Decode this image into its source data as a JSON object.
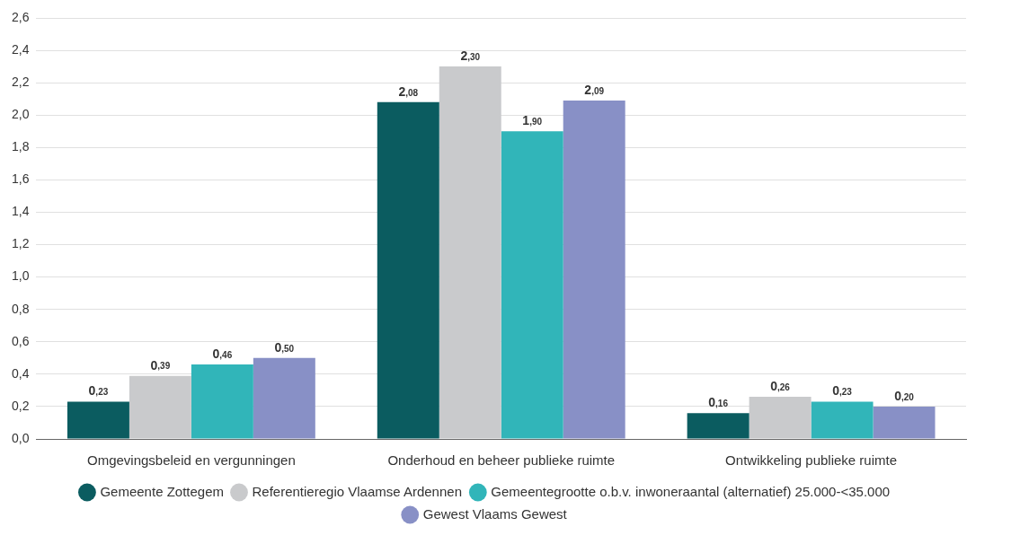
{
  "chart_data": {
    "type": "bar",
    "categories": [
      "Omgevingsbeleid en vergunningen",
      "Onderhoud en beheer publieke ruimte",
      "Ontwikkeling publieke ruimte"
    ],
    "series": [
      {
        "name": "Gemeente Zottegem",
        "color": "#0b5c60",
        "values": [
          0.23,
          2.08,
          0.16
        ],
        "value_labels": [
          "0,23",
          "2,08",
          "0,16"
        ]
      },
      {
        "name": "Referentieregio Vlaamse Ardennen",
        "color": "#c9cacc",
        "values": [
          0.39,
          2.3,
          0.26
        ],
        "value_labels": [
          "0,39",
          "2,30",
          "0,26"
        ]
      },
      {
        "name": "Gemeentegrootte o.b.v. inwoneraantal (alternatief) 25.000-<35.000",
        "color": "#31b5b9",
        "values": [
          0.46,
          1.9,
          0.23
        ],
        "value_labels": [
          "0,46",
          "1,90",
          "0,23"
        ]
      },
      {
        "name": "Gewest Vlaams Gewest",
        "color": "#8890c6",
        "values": [
          0.5,
          2.09,
          0.2
        ],
        "value_labels": [
          "0,50",
          "2,09",
          "0,20"
        ]
      }
    ],
    "ylim": [
      0,
      2.6
    ],
    "yticks": [
      {
        "value": 0,
        "label": "0,0"
      },
      {
        "value": 0.2,
        "label": "0,2"
      },
      {
        "value": 0.4,
        "label": "0,4"
      },
      {
        "value": 0.6,
        "label": "0,6"
      },
      {
        "value": 0.8,
        "label": "0,8"
      },
      {
        "value": 1.0,
        "label": "1,0"
      },
      {
        "value": 1.2,
        "label": "1,2"
      },
      {
        "value": 1.4,
        "label": "1,4"
      },
      {
        "value": 1.6,
        "label": "1,6"
      },
      {
        "value": 1.8,
        "label": "1,8"
      },
      {
        "value": 2.0,
        "label": "2,0"
      },
      {
        "value": 2.2,
        "label": "2,2"
      },
      {
        "value": 2.4,
        "label": "2,4"
      },
      {
        "value": 2.6,
        "label": "2,6"
      }
    ],
    "grid": "y",
    "legend": "bottom",
    "marker": "circle"
  }
}
